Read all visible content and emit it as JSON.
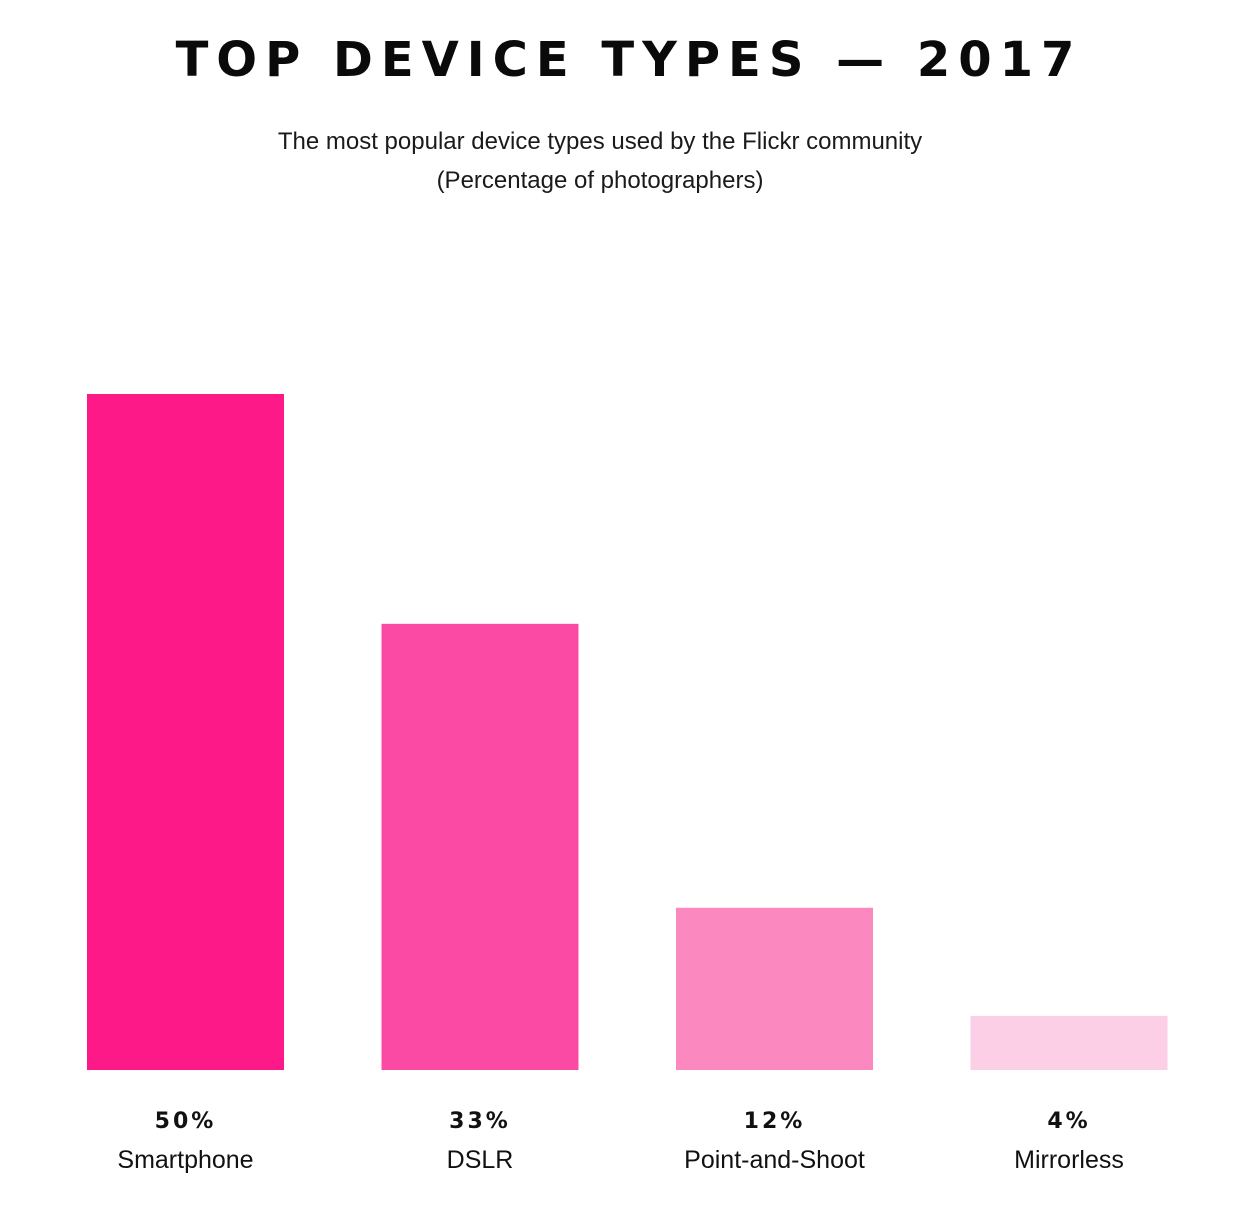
{
  "chart_data": {
    "type": "bar",
    "title": "TOP DEVICE TYPES — 2017",
    "subtitle": [
      "The most popular device types used by the Flickr community",
      "(Percentage of photographers)"
    ],
    "categories": [
      "Smartphone",
      "DSLR",
      "Point-and-Shoot",
      "Mirrorless"
    ],
    "values": [
      50,
      33,
      12,
      4
    ],
    "value_labels": [
      "50%",
      "33%",
      "12%",
      "4%"
    ],
    "colors": [
      "#fd1987",
      "#fb4aa3",
      "#fc88c0",
      "#fdcfe7"
    ],
    "ylim": [
      0,
      50
    ],
    "grid": false,
    "legend": "none"
  }
}
